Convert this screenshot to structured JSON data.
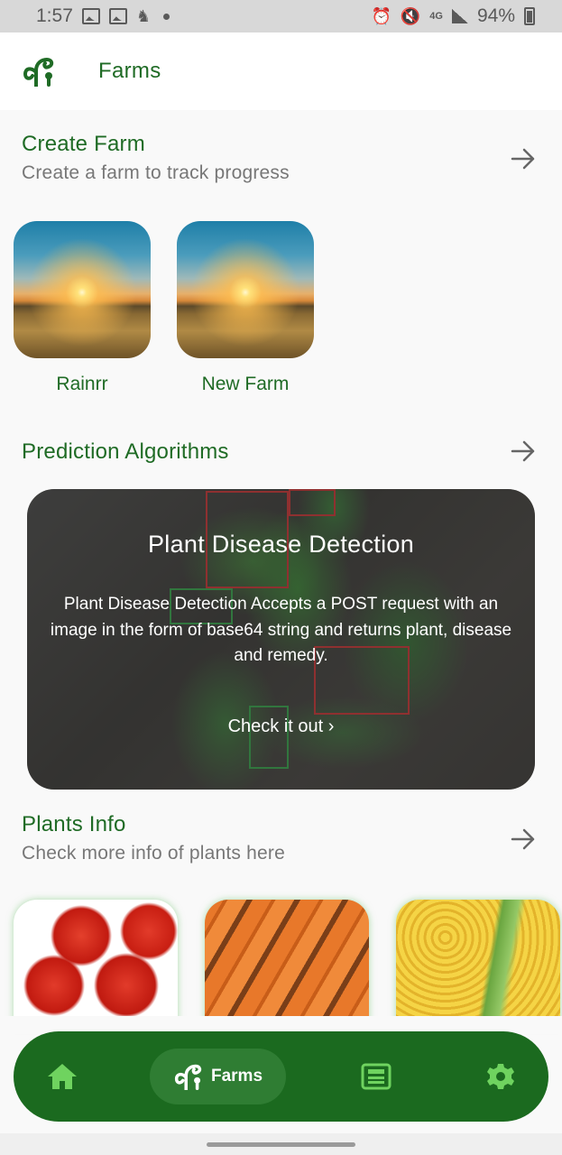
{
  "status_bar": {
    "time": "1:57",
    "network": "4G",
    "battery": "94%"
  },
  "app_bar": {
    "title": "Farms"
  },
  "create_farm": {
    "title": "Create Farm",
    "subtitle": "Create a farm to track progress",
    "farms": [
      {
        "name": "Rainrr"
      },
      {
        "name": "New Farm"
      }
    ]
  },
  "prediction": {
    "title": "Prediction Algorithms",
    "card": {
      "title": "Plant Disease Detection",
      "description": "Plant Disease Detection Accepts a POST request with an image in the form of base64 string and returns plant, disease and remedy.",
      "cta": "Check it out ›"
    }
  },
  "plants_info": {
    "title": "Plants Info",
    "subtitle": "Check more info of plants here"
  },
  "bottom_nav": {
    "active_label": "Farms",
    "items": [
      "home-icon",
      "farms-icon",
      "news-icon",
      "settings-icon"
    ]
  },
  "colors": {
    "primary": "#1f6b25",
    "nav_bg": "#1b6a1f",
    "nav_active": "#2f7d33",
    "icon_green": "#6fd35f"
  }
}
